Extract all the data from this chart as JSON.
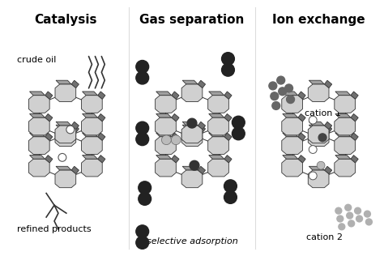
{
  "bg_color": "#ffffff",
  "title_fontsize": 11,
  "label_fontsize": 8,
  "sections": [
    "Catalysis",
    "Gas separation",
    "Ion exchange"
  ],
  "section_title_bold": true,
  "zeolite_light": "#d0d0d0",
  "zeolite_mid": "#a0a0a0",
  "zeolite_dark": "#707070",
  "zeolite_edge": "#333333",
  "dark_particle": "#222222",
  "light_particle": "#b0b0b0",
  "mid_particle": "#666666"
}
